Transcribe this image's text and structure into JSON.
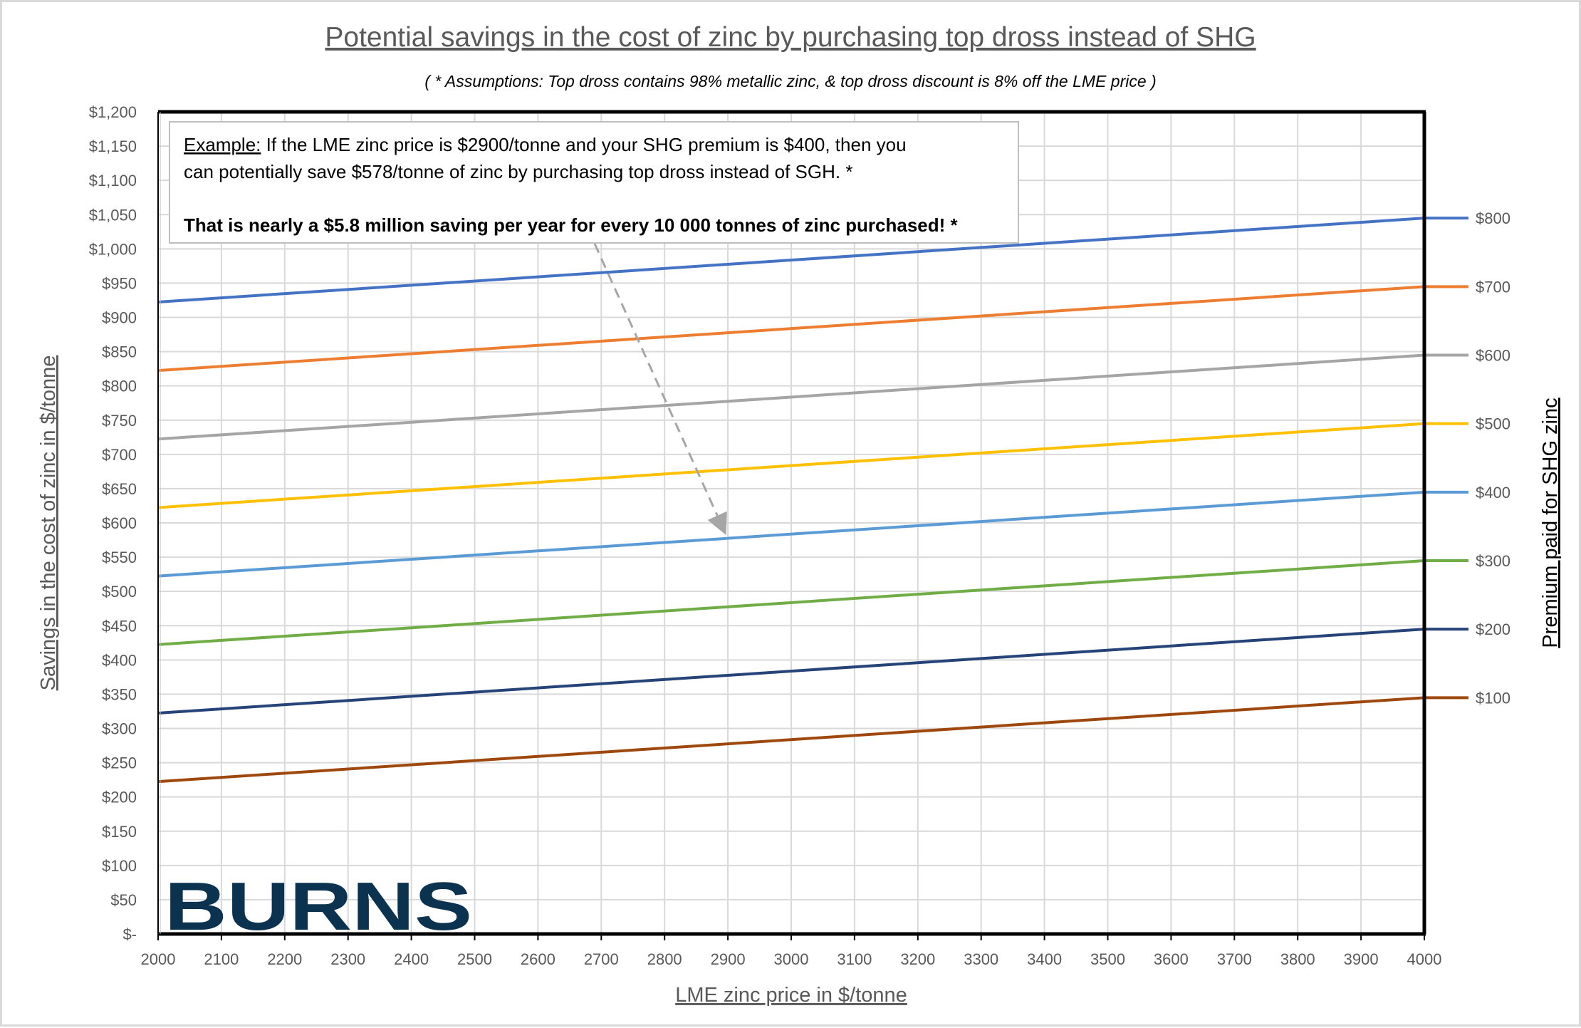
{
  "chart_data": {
    "type": "line",
    "title": "Potential savings in the cost of zinc by purchasing top dross instead of SHG",
    "subtitle": "( * Assumptions: Top dross contains 98% metallic zinc, & top dross discount is 8% off the LME price )",
    "xlabel": "LME zinc price in $/tonne",
    "ylabel": "Savings in the cost of zinc in $/tonne",
    "y2label": "Premium paid for SHG zinc",
    "xlim": [
      2000,
      4000
    ],
    "ylim": [
      0,
      1200
    ],
    "grid": true,
    "x_ticks": [
      "2000",
      "2100",
      "2200",
      "2300",
      "2400",
      "2500",
      "2600",
      "2700",
      "2800",
      "2900",
      "3000",
      "3100",
      "3200",
      "3300",
      "3400",
      "3500",
      "3600",
      "3700",
      "3800",
      "3900",
      "4000"
    ],
    "y_ticks": [
      "$-",
      "$50",
      "$100",
      "$150",
      "$200",
      "$250",
      "$300",
      "$350",
      "$400",
      "$450",
      "$500",
      "$550",
      "$600",
      "$650",
      "$700",
      "$750",
      "$800",
      "$850",
      "$900",
      "$950",
      "$1,000",
      "$1,050",
      "$1,100",
      "$1,150",
      "$1,200"
    ],
    "x": [
      2000,
      4000
    ],
    "series": [
      {
        "name": "$800",
        "color": "#4472c4",
        "values": [
          922.4,
          1044.9
        ]
      },
      {
        "name": "$700",
        "color": "#ed7d31",
        "values": [
          822.4,
          944.9
        ]
      },
      {
        "name": "$600",
        "color": "#a5a5a5",
        "values": [
          722.4,
          844.9
        ]
      },
      {
        "name": "$500",
        "color": "#ffc000",
        "values": [
          622.4,
          744.9
        ]
      },
      {
        "name": "$400",
        "color": "#5b9bd5",
        "values": [
          522.4,
          644.9
        ]
      },
      {
        "name": "$300",
        "color": "#70ad47",
        "values": [
          422.4,
          544.9
        ]
      },
      {
        "name": "$200",
        "color": "#264478",
        "values": [
          322.4,
          444.9
        ]
      },
      {
        "name": "$100",
        "color": "#9e480e",
        "values": [
          222.4,
          344.9
        ]
      }
    ],
    "annotation": {
      "label": "Example:",
      "line1": " If the LME zinc price is $2900/tonne and your SHG premium is $400, then you",
      "line2": "can potentially save $578/tonne of zinc by purchasing top dross instead of SGH. *",
      "line3": "That is nearly a $5.8 million saving per year for every 10 000 tonnes of zinc purchased! *",
      "arrow_target": {
        "x": 2900,
        "y": 577.5
      }
    }
  },
  "logo_text": "BURNS",
  "logo_color": "#0b3350"
}
